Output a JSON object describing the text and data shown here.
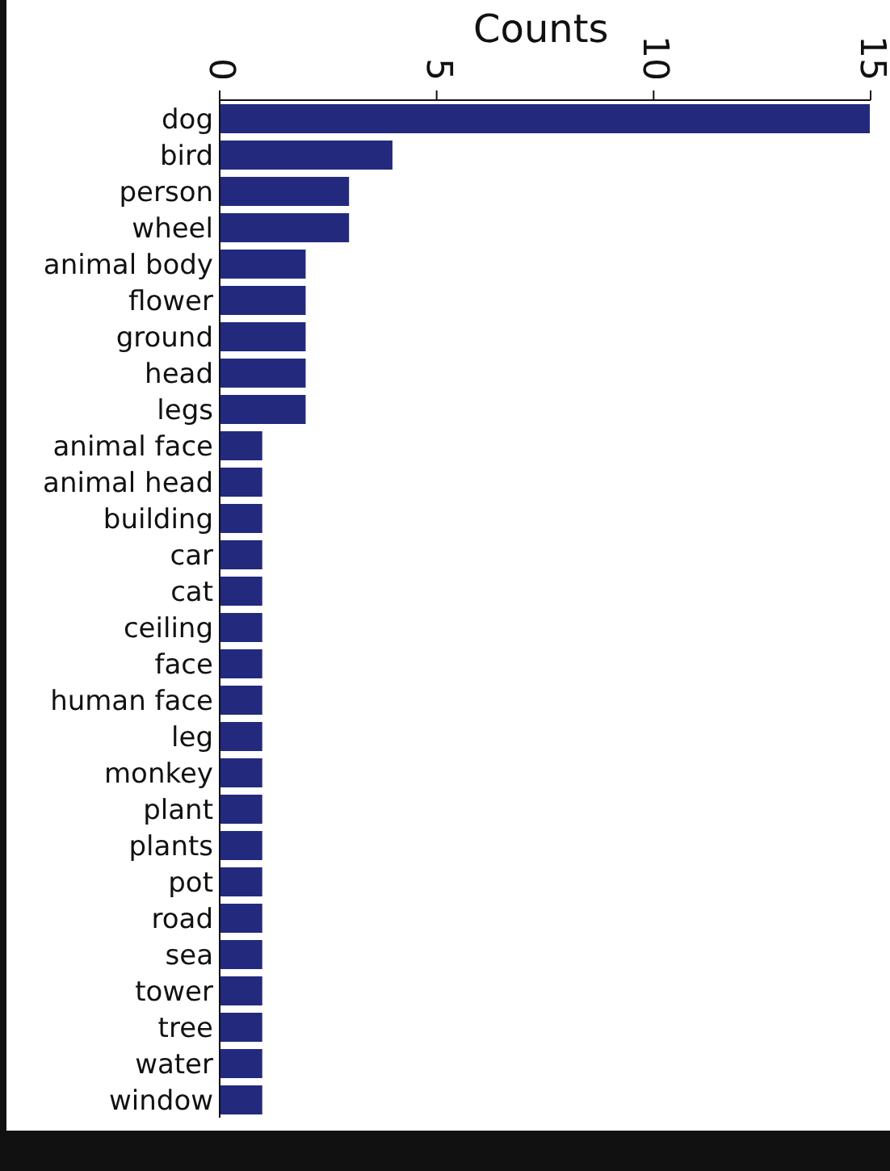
{
  "chart_data": {
    "type": "bar",
    "orientation": "horizontal",
    "xlabel": "Counts",
    "categories": [
      "dog",
      "bird",
      "person",
      "wheel",
      "animal body",
      "flower",
      "ground",
      "head",
      "legs",
      "animal face",
      "animal head",
      "building",
      "car",
      "cat",
      "ceiling",
      "face",
      "human face",
      "leg",
      "monkey",
      "plant",
      "plants",
      "pot",
      "road",
      "sea",
      "tower",
      "tree",
      "water",
      "window"
    ],
    "values": [
      15,
      4,
      3,
      3,
      2,
      2,
      2,
      2,
      2,
      1,
      1,
      1,
      1,
      1,
      1,
      1,
      1,
      1,
      1,
      1,
      1,
      1,
      1,
      1,
      1,
      1,
      1,
      1
    ],
    "color": "#232a7e",
    "xlim": [
      0,
      15
    ],
    "xticks": [
      0,
      5,
      10,
      15
    ],
    "grid": false
  }
}
